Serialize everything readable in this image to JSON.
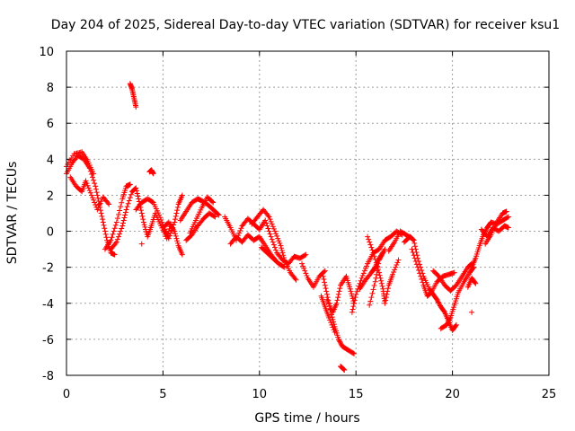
{
  "chart_data": {
    "type": "scatter",
    "title": "Day 204 of 2025, Sidereal Day-to-day VTEC variation (SDTVAR) for receiver ksu1",
    "xlabel": "GPS time / hours",
    "ylabel": "SDTVAR / TECUs",
    "xlim": [
      0,
      25
    ],
    "ylim": [
      -8,
      10
    ],
    "xticks": [
      "0",
      "5",
      "10",
      "15",
      "20",
      "25"
    ],
    "yticks": [
      "-8",
      "-6",
      "-4",
      "-2",
      "0",
      "2",
      "4",
      "6",
      "8",
      "10"
    ],
    "grid": true,
    "marker": "+",
    "color": "#ff0000",
    "series": [
      {
        "name": "ksu1",
        "tracks": [
          [
            [
              0.0,
              3.2
            ],
            [
              0.3,
              3.8
            ],
            [
              0.6,
              4.2
            ],
            [
              0.9,
              4.0
            ],
            [
              1.2,
              3.5
            ],
            [
              1.5,
              2.5
            ],
            [
              1.7,
              1.5
            ],
            [
              1.9,
              0.5
            ],
            [
              2.1,
              -0.5
            ],
            [
              2.3,
              -1.2
            ],
            [
              2.5,
              -1.3
            ]
          ],
          [
            [
              0.2,
              3.0
            ],
            [
              0.5,
              2.5
            ],
            [
              0.8,
              2.2
            ],
            [
              1.0,
              2.8
            ],
            [
              1.3,
              2.0
            ],
            [
              1.6,
              1.2
            ],
            [
              1.9,
              1.9
            ],
            [
              2.2,
              1.5
            ]
          ],
          [
            [
              0.0,
              3.6
            ],
            [
              0.4,
              4.3
            ],
            [
              0.8,
              4.4
            ],
            [
              1.1,
              3.9
            ],
            [
              1.4,
              3.2
            ]
          ],
          [
            [
              2.3,
              -1.0
            ],
            [
              2.6,
              -0.6
            ],
            [
              2.9,
              0.3
            ],
            [
              3.1,
              1.2
            ],
            [
              3.4,
              2.2
            ],
            [
              3.6,
              2.4
            ],
            [
              3.8,
              1.5
            ],
            [
              4.0,
              0.5
            ],
            [
              4.2,
              -0.3
            ],
            [
              4.4,
              0.3
            ],
            [
              4.6,
              1.0
            ],
            [
              4.9,
              0.3
            ],
            [
              5.2,
              -0.4
            ],
            [
              5.4,
              0.4
            ]
          ],
          [
            [
              2.0,
              -1.0
            ],
            [
              2.3,
              -0.5
            ],
            [
              2.6,
              0.5
            ],
            [
              2.9,
              1.8
            ],
            [
              3.1,
              2.5
            ],
            [
              3.3,
              2.6
            ]
          ],
          [
            [
              3.3,
              8.2
            ],
            [
              3.4,
              7.9
            ],
            [
              3.5,
              7.4
            ],
            [
              3.6,
              6.9
            ]
          ],
          [
            [
              4.3,
              3.3
            ],
            [
              4.4,
              3.4
            ],
            [
              4.5,
              3.2
            ]
          ],
          [
            [
              3.9,
              -0.7
            ]
          ],
          [
            [
              3.6,
              1.2
            ],
            [
              3.9,
              1.6
            ],
            [
              4.2,
              1.8
            ],
            [
              4.5,
              1.6
            ],
            [
              4.8,
              0.9
            ],
            [
              5.1,
              0.1
            ],
            [
              5.3,
              -0.4
            ],
            [
              5.6,
              0.5
            ],
            [
              5.8,
              1.5
            ],
            [
              6.0,
              2.0
            ]
          ],
          [
            [
              5.0,
              0.2
            ],
            [
              5.3,
              0.5
            ],
            [
              5.6,
              0.0
            ],
            [
              5.8,
              -0.8
            ],
            [
              6.0,
              -1.3
            ]
          ],
          [
            [
              5.9,
              0.6
            ],
            [
              6.2,
              1.1
            ],
            [
              6.5,
              1.6
            ],
            [
              6.8,
              1.8
            ],
            [
              7.0,
              1.7
            ],
            [
              7.3,
              1.5
            ],
            [
              7.6,
              1.2
            ],
            [
              7.9,
              0.9
            ]
          ],
          [
            [
              6.2,
              -0.5
            ],
            [
              6.5,
              -0.2
            ],
            [
              6.8,
              0.3
            ],
            [
              7.1,
              0.7
            ],
            [
              7.4,
              1.0
            ],
            [
              7.7,
              0.8
            ]
          ],
          [
            [
              6.4,
              -0.1
            ],
            [
              6.7,
              0.6
            ],
            [
              7.0,
              1.3
            ],
            [
              7.3,
              1.9
            ],
            [
              7.6,
              1.6
            ]
          ],
          [
            [
              8.2,
              0.8
            ],
            [
              8.5,
              0.2
            ],
            [
              8.8,
              -0.5
            ],
            [
              9.1,
              0.3
            ],
            [
              9.4,
              0.7
            ],
            [
              9.7,
              0.4
            ],
            [
              10.0,
              0.1
            ],
            [
              10.3,
              0.6
            ],
            [
              10.6,
              -0.3
            ],
            [
              10.9,
              -1.2
            ],
            [
              11.2,
              -1.6
            ],
            [
              11.5,
              -1.8
            ],
            [
              11.8,
              -1.4
            ],
            [
              12.1,
              -1.5
            ],
            [
              12.4,
              -1.3
            ]
          ],
          [
            [
              8.5,
              -0.7
            ],
            [
              8.8,
              -0.3
            ],
            [
              9.1,
              -0.6
            ],
            [
              9.4,
              -0.2
            ],
            [
              9.7,
              -0.5
            ],
            [
              10.0,
              -0.3
            ],
            [
              10.3,
              -0.8
            ],
            [
              10.6,
              -1.3
            ],
            [
              10.9,
              -1.7
            ]
          ],
          [
            [
              9.6,
              0.4
            ],
            [
              9.9,
              0.8
            ],
            [
              10.2,
              1.2
            ],
            [
              10.5,
              0.8
            ],
            [
              10.8,
              0.0
            ],
            [
              11.1,
              -0.8
            ],
            [
              11.3,
              -1.6
            ],
            [
              11.6,
              -2.3
            ],
            [
              11.9,
              -2.7
            ]
          ],
          [
            [
              10.1,
              -0.9
            ],
            [
              10.4,
              -1.2
            ],
            [
              10.7,
              -1.5
            ],
            [
              11.0,
              -1.8
            ],
            [
              11.3,
              -2.0
            ]
          ],
          [
            [
              12.2,
              -1.8
            ],
            [
              12.5,
              -2.6
            ],
            [
              12.8,
              -3.1
            ],
            [
              13.1,
              -2.5
            ],
            [
              13.4,
              -2.2
            ]
          ],
          [
            [
              13.3,
              -2.5
            ],
            [
              13.5,
              -3.5
            ],
            [
              13.7,
              -4.5
            ],
            [
              13.9,
              -5.3
            ],
            [
              14.1,
              -6.0
            ],
            [
              14.3,
              -6.4
            ],
            [
              14.6,
              -6.6
            ],
            [
              14.9,
              -6.8
            ]
          ],
          [
            [
              13.2,
              -3.6
            ],
            [
              13.4,
              -4.2
            ],
            [
              13.6,
              -4.8
            ],
            [
              13.9,
              -5.6
            ]
          ],
          [
            [
              13.5,
              -3.8
            ],
            [
              13.8,
              -4.5
            ],
            [
              14.0,
              -4.0
            ],
            [
              14.2,
              -3.0
            ],
            [
              14.5,
              -2.5
            ],
            [
              14.7,
              -3.2
            ],
            [
              14.9,
              -4.0
            ]
          ],
          [
            [
              14.2,
              -7.5
            ],
            [
              14.4,
              -7.7
            ]
          ],
          [
            [
              14.8,
              -4.5
            ],
            [
              15.0,
              -3.5
            ],
            [
              15.3,
              -2.6
            ],
            [
              15.6,
              -1.8
            ],
            [
              15.9,
              -1.2
            ],
            [
              16.2,
              -1.0
            ],
            [
              16.5,
              -0.5
            ],
            [
              16.8,
              -0.3
            ],
            [
              17.1,
              0.0
            ],
            [
              17.4,
              -0.2
            ]
          ],
          [
            [
              15.2,
              -3.2
            ],
            [
              15.5,
              -2.7
            ],
            [
              15.8,
              -2.3
            ],
            [
              16.0,
              -2.0
            ],
            [
              16.2,
              -1.5
            ],
            [
              16.5,
              -1.0
            ]
          ],
          [
            [
              15.6,
              -0.3
            ],
            [
              15.9,
              -1.2
            ],
            [
              16.2,
              -2.3
            ],
            [
              16.4,
              -3.2
            ],
            [
              16.5,
              -4.0
            ],
            [
              16.7,
              -3.0
            ],
            [
              16.9,
              -2.4
            ],
            [
              17.2,
              -1.6
            ]
          ],
          [
            [
              16.7,
              -1.1
            ],
            [
              17.0,
              -0.6
            ],
            [
              17.3,
              0.0
            ],
            [
              17.6,
              -0.2
            ],
            [
              17.9,
              -0.4
            ]
          ],
          [
            [
              15.7,
              -4.1
            ],
            [
              16.0,
              -2.8
            ],
            [
              16.2,
              -1.6
            ],
            [
              16.4,
              -1.2
            ]
          ],
          [
            [
              17.5,
              -0.6
            ],
            [
              17.8,
              -0.3
            ],
            [
              18.0,
              -0.5
            ],
            [
              18.2,
              -1.5
            ],
            [
              18.5,
              -2.5
            ],
            [
              18.8,
              -3.2
            ],
            [
              19.0,
              -3.5
            ],
            [
              19.2,
              -3.8
            ],
            [
              19.4,
              -4.2
            ],
            [
              19.6,
              -4.5
            ],
            [
              19.8,
              -5.0
            ],
            [
              20.0,
              -5.5
            ],
            [
              20.2,
              -5.2
            ]
          ],
          [
            [
              17.9,
              -1.0
            ],
            [
              18.2,
              -2.0
            ],
            [
              18.5,
              -3.0
            ],
            [
              18.7,
              -3.6
            ],
            [
              18.9,
              -3.4
            ],
            [
              19.2,
              -2.8
            ],
            [
              19.5,
              -2.5
            ],
            [
              19.8,
              -2.4
            ],
            [
              20.1,
              -2.3
            ]
          ],
          [
            [
              19.0,
              -2.2
            ],
            [
              19.3,
              -2.5
            ],
            [
              19.6,
              -3.0
            ],
            [
              19.9,
              -3.3
            ],
            [
              20.2,
              -3.0
            ],
            [
              20.5,
              -2.5
            ],
            [
              20.8,
              -2.0
            ],
            [
              21.0,
              -1.8
            ]
          ],
          [
            [
              19.4,
              -5.4
            ],
            [
              19.7,
              -5.2
            ],
            [
              19.9,
              -4.8
            ],
            [
              20.1,
              -4.1
            ],
            [
              20.3,
              -3.4
            ],
            [
              20.6,
              -2.8
            ],
            [
              20.9,
              -2.3
            ],
            [
              21.1,
              -2.0
            ]
          ],
          [
            [
              21.0,
              -2.0
            ],
            [
              21.2,
              -1.5
            ],
            [
              21.4,
              -0.8
            ],
            [
              21.6,
              -0.2
            ],
            [
              21.8,
              0.2
            ],
            [
              22.0,
              0.5
            ],
            [
              22.3,
              0.4
            ],
            [
              22.6,
              0.6
            ],
            [
              22.9,
              0.8
            ]
          ],
          [
            [
              21.5,
              0.1
            ],
            [
              21.8,
              -0.3
            ],
            [
              22.1,
              0.2
            ],
            [
              22.4,
              0.0
            ],
            [
              22.7,
              0.3
            ],
            [
              22.9,
              0.2
            ]
          ],
          [
            [
              21.7,
              -0.7
            ],
            [
              22.0,
              -0.2
            ],
            [
              22.3,
              0.5
            ],
            [
              22.6,
              1.0
            ],
            [
              22.8,
              1.1
            ]
          ],
          [
            [
              21.0,
              -4.5
            ]
          ],
          [
            [
              20.8,
              -3.1
            ],
            [
              21.0,
              -2.6
            ],
            [
              21.2,
              -2.9
            ]
          ]
        ]
      }
    ]
  }
}
